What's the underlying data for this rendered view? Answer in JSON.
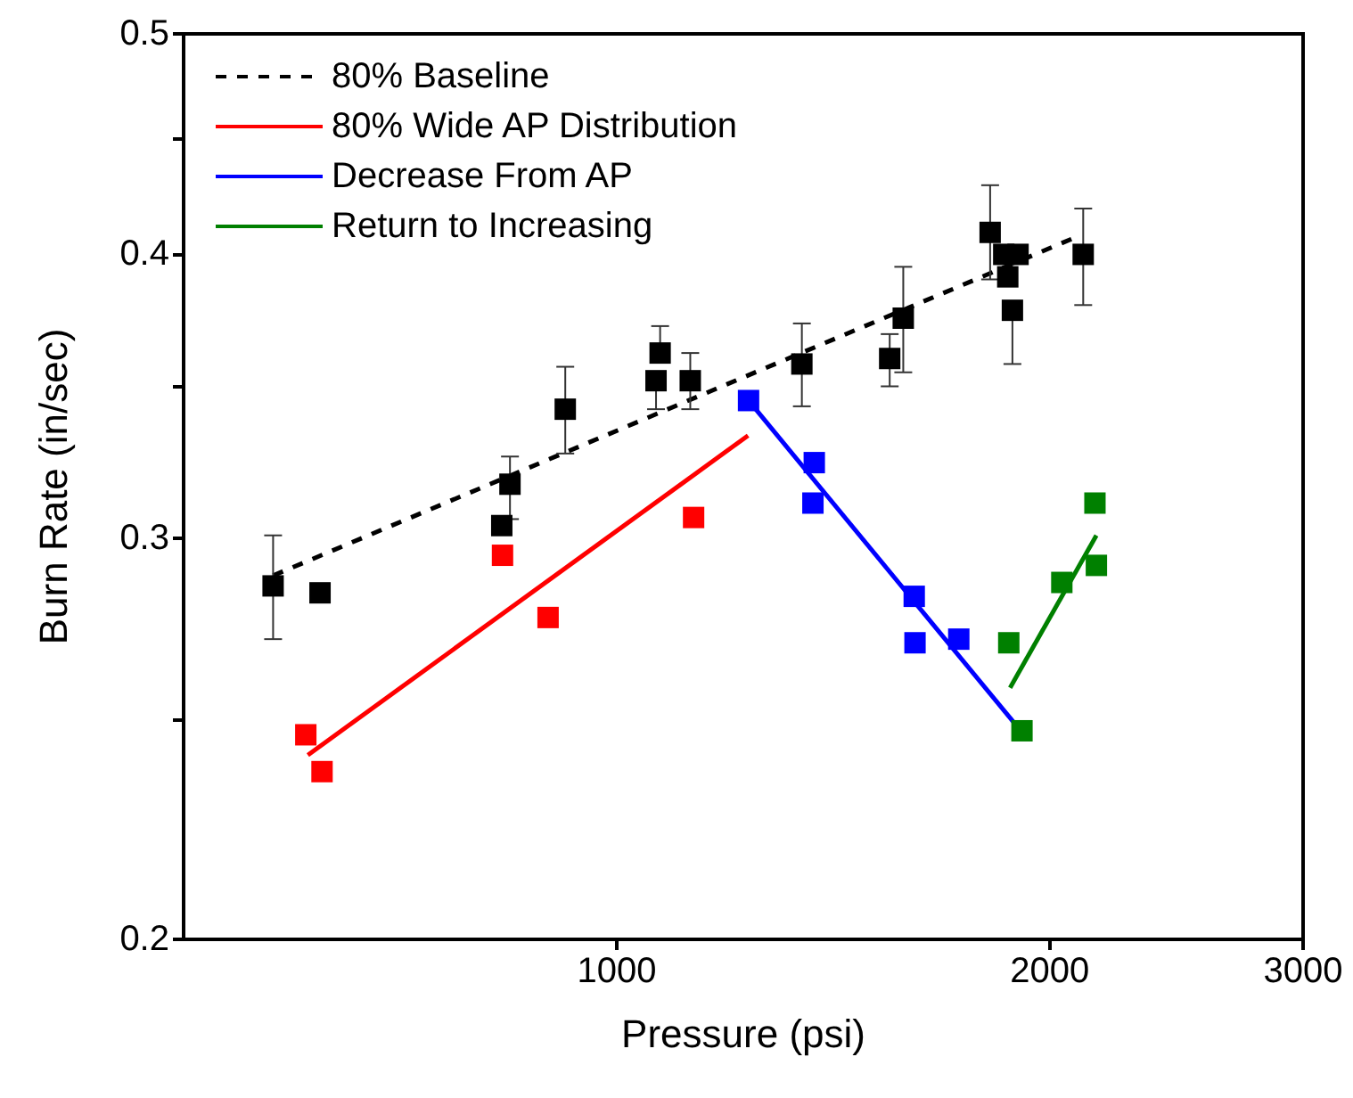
{
  "chart_data": {
    "type": "scatter",
    "xlabel": "Pressure (psi)",
    "ylabel": "Burn Rate (in/sec)",
    "log": "xy",
    "xlim": [
      500,
      3000
    ],
    "xticks": [
      1000,
      2000,
      3000
    ],
    "ylim": [
      0.2,
      0.5
    ],
    "yticks": [
      0.2,
      {
        "value": 0.25,
        "label": null
      },
      0.3,
      {
        "value": 0.35,
        "label": null
      },
      0.4,
      {
        "value": 0.45,
        "label": null
      },
      0.5
    ],
    "grid": false,
    "legend": "top left",
    "marker": "square",
    "series": [
      {
        "color": "#000000",
        "x": [
          577,
          622,
          832,
          843,
          921,
          1065,
          1072,
          1125,
          1345,
          1548,
          1582,
          1818,
          1858,
          1870,
          1884,
          1901,
          2110
        ],
        "values": [
          0.286,
          0.284,
          0.304,
          0.317,
          0.342,
          0.352,
          0.362,
          0.352,
          0.358,
          0.36,
          0.375,
          0.409,
          0.4,
          0.391,
          0.378,
          0.4,
          0.4
        ],
        "errors": [
          [
            0.271,
            0.301
          ],
          null,
          null,
          [
            0.306,
            0.326
          ],
          [
            0.327,
            0.357
          ],
          [
            0.342,
            0.352
          ],
          [
            0.362,
            0.372
          ],
          [
            0.342,
            0.362
          ],
          [
            0.343,
            0.373
          ],
          [
            0.35,
            0.369
          ],
          [
            0.355,
            0.395
          ],
          [
            0.39,
            0.429
          ],
          null,
          null,
          [
            0.358,
            0.378
          ],
          null,
          [
            0.38,
            0.419
          ]
        ]
      },
      {
        "color": "#ff0000",
        "x": [
          608,
          624,
          833,
          896,
          1131
        ],
        "values": [
          0.246,
          0.237,
          0.295,
          0.277,
          0.3065
        ]
      },
      {
        "color": "#0000ff",
        "x": [
          1235,
          1369,
          1372,
          1610,
          1612,
          1729
        ],
        "values": [
          0.345,
          0.311,
          0.324,
          0.283,
          0.27,
          0.271
        ]
      },
      {
        "color": "#008000",
        "x": [
          1873,
          1913,
          2039,
          2150,
          2155
        ],
        "values": [
          0.27,
          0.247,
          0.287,
          0.311,
          0.292
        ]
      },
      {
        "type": "line",
        "name": "80% Baseline",
        "color": "#000000",
        "marker": "none",
        "line_style": "dashed",
        "x": [
          577,
          2085
        ],
        "values": [
          0.289,
          0.407
        ]
      },
      {
        "type": "line",
        "name": "80% Wide AP Distribution",
        "color": "#ff0000",
        "marker": "none",
        "line_style": "solid",
        "x": [
          610,
          1234
        ],
        "values": [
          0.241,
          0.333
        ]
      },
      {
        "type": "line",
        "name": "Decrease From AP",
        "color": "#0000ff",
        "marker": "none",
        "line_style": "solid",
        "x": [
          1235,
          1909
        ],
        "values": [
          0.345,
          0.247
        ]
      },
      {
        "type": "line",
        "name": "Return to Increasing",
        "color": "#008000",
        "marker": "none",
        "line_style": "solid",
        "x": [
          1877,
          2155
        ],
        "values": [
          0.258,
          0.301
        ]
      }
    ]
  }
}
